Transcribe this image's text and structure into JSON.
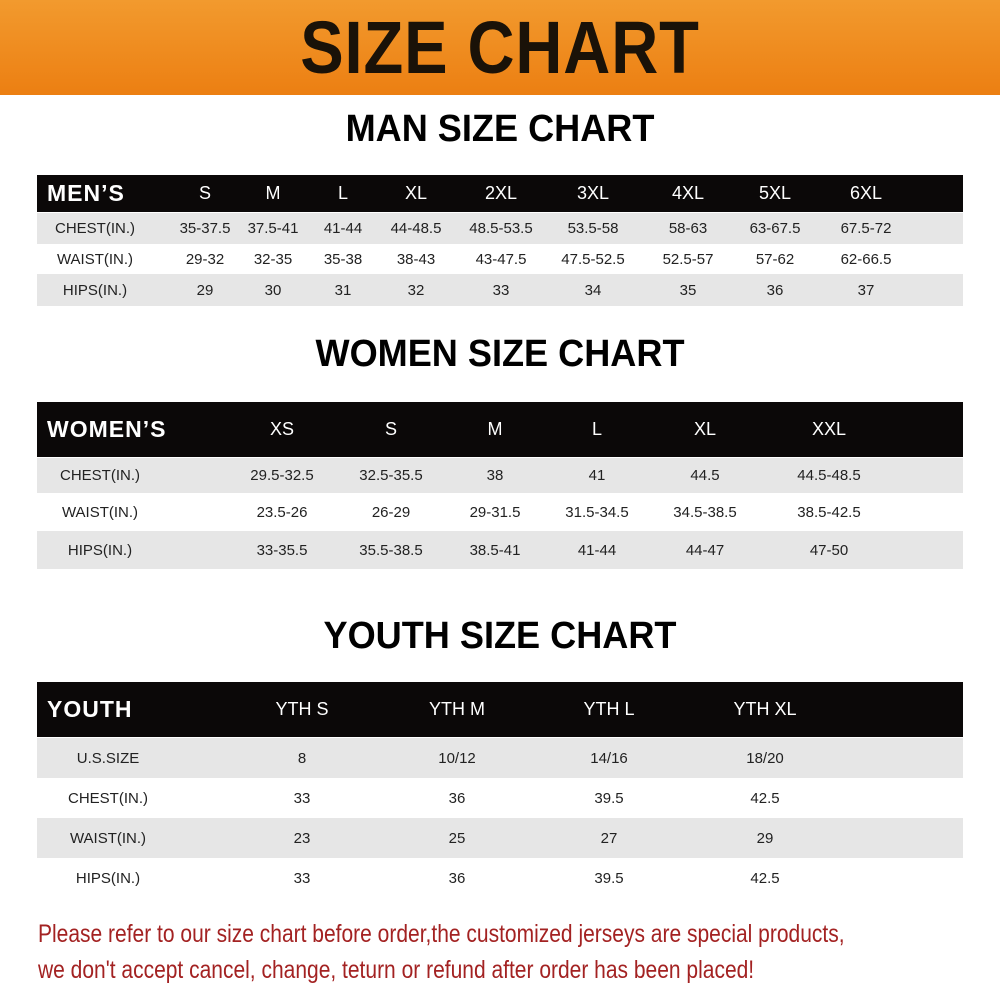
{
  "banner_title": "SIZE CHART",
  "men": {
    "title": "MAN SIZE CHART",
    "header": [
      "MEN’S",
      "S",
      "M",
      "L",
      "XL",
      "2XL",
      "3XL",
      "4XL",
      "5XL",
      "6XL"
    ],
    "rows": [
      [
        "CHEST(IN.)",
        "35-37.5",
        "37.5-41",
        "41-44",
        "44-48.5",
        "48.5-53.5",
        "53.5-58",
        "58-63",
        "63-67.5",
        "67.5-72"
      ],
      [
        "WAIST(IN.)",
        "29-32",
        "32-35",
        "35-38",
        "38-43",
        "43-47.5",
        "47.5-52.5",
        "52.5-57",
        "57-62",
        "62-66.5"
      ],
      [
        "HIPS(IN.)",
        "29",
        "30",
        "31",
        "32",
        "33",
        "34",
        "35",
        "36",
        "37"
      ]
    ]
  },
  "women": {
    "title": "WOMEN SIZE CHART",
    "header": [
      "WOMEN’S",
      "XS",
      "S",
      "M",
      "L",
      "XL",
      "XXL"
    ],
    "rows": [
      [
        "CHEST(IN.)",
        "29.5-32.5",
        "32.5-35.5",
        "38",
        "41",
        "44.5",
        "44.5-48.5"
      ],
      [
        "WAIST(IN.)",
        "23.5-26",
        "26-29",
        "29-31.5",
        "31.5-34.5",
        "34.5-38.5",
        "38.5-42.5"
      ],
      [
        "HIPS(IN.)",
        "33-35.5",
        "35.5-38.5",
        "38.5-41",
        "41-44",
        "44-47",
        "47-50"
      ]
    ]
  },
  "youth": {
    "title": "YOUTH SIZE CHART",
    "header": [
      "YOUTH",
      "YTH S",
      "YTH M",
      "YTH L",
      "YTH XL"
    ],
    "rows": [
      [
        "U.S.SIZE",
        "8",
        "10/12",
        "14/16",
        "18/20"
      ],
      [
        "CHEST(IN.)",
        "33",
        "36",
        "39.5",
        "42.5"
      ],
      [
        "WAIST(IN.)",
        "23",
        "25",
        "27",
        "29"
      ],
      [
        "HIPS(IN.)",
        "33",
        "36",
        "39.5",
        "42.5"
      ]
    ]
  },
  "footer": {
    "line1": "Please refer to our size chart before order,the customized jerseys are special products,",
    "line2": "we don't accept cancel, change, teturn or refund after order has been placed!"
  },
  "colors": {
    "banner": "#ee8a1e",
    "header_bg": "#0b0808",
    "stripe": "#e6e6e6",
    "footer_text": "#a32222"
  }
}
